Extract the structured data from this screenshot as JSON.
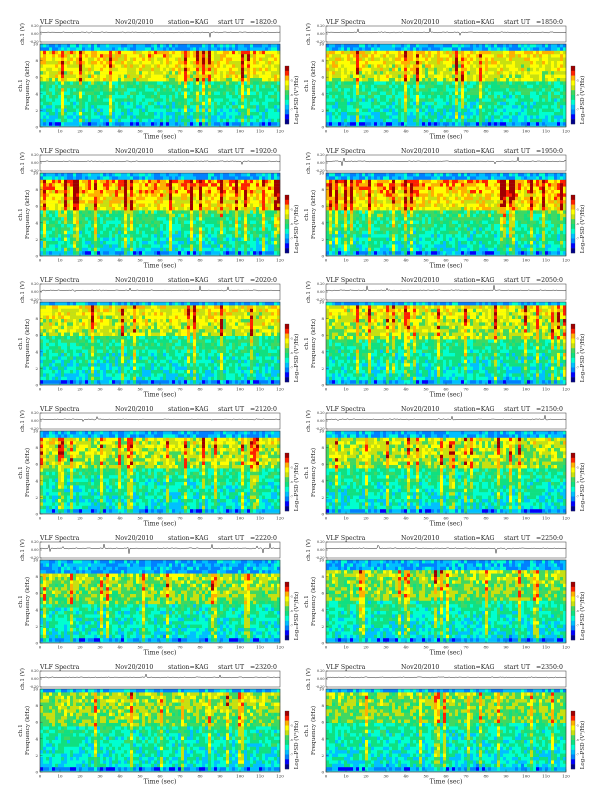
{
  "colors": {
    "background": "#ffffff",
    "colormap": [
      "#00008b",
      "#0000ff",
      "#0080ff",
      "#00c0ff",
      "#00ffd0",
      "#10e080",
      "#40d860",
      "#c8e010",
      "#ffff00",
      "#ffb000",
      "#ff2000",
      "#a00000"
    ],
    "ch1_trace": "#222222",
    "axis": "#333333"
  },
  "labels": {
    "title": "VLF Spectra",
    "date": "Nov20/2010",
    "station": "station=KAG",
    "start_prefix": "start  UT",
    "ch1_axis": "ch.1 (V)",
    "freq_axis_line1": "ch.1",
    "freq_axis_line2": "Frequency  (kHz)",
    "time_axis": "Time  (sec)",
    "colorbar_label": "Log₁₀PSD (V²/Hz)"
  },
  "panels": [
    {
      "start_ut": "=1820:0"
    },
    {
      "start_ut": "=1850:0"
    },
    {
      "start_ut": "=1920:0"
    },
    {
      "start_ut": "=1950:0"
    },
    {
      "start_ut": "=2020:0"
    },
    {
      "start_ut": "=2050:0"
    },
    {
      "start_ut": "=2120:0"
    },
    {
      "start_ut": "=2150:0"
    },
    {
      "start_ut": "=2220:0"
    },
    {
      "start_ut": "=2250:0"
    },
    {
      "start_ut": "=2320:0"
    },
    {
      "start_ut": "=2350:0"
    }
  ],
  "chart_data": {
    "type": "heatmap",
    "x_ticks": [
      "0",
      "10",
      "20",
      "30",
      "40",
      "50",
      "60",
      "70",
      "80",
      "90",
      "100",
      "110",
      "120"
    ],
    "y_ticks": [
      "0",
      "2",
      "4",
      "6",
      "8",
      "10"
    ],
    "ch1_ticks": [
      "0.20",
      "0.00",
      "-0.20"
    ],
    "xlim": [
      0,
      120
    ],
    "ylim": [
      0,
      10
    ],
    "ch1_lim": [
      -0.2,
      0.2
    ],
    "colorbar_ticks": [
      "-5",
      "-6",
      "-7"
    ]
  }
}
